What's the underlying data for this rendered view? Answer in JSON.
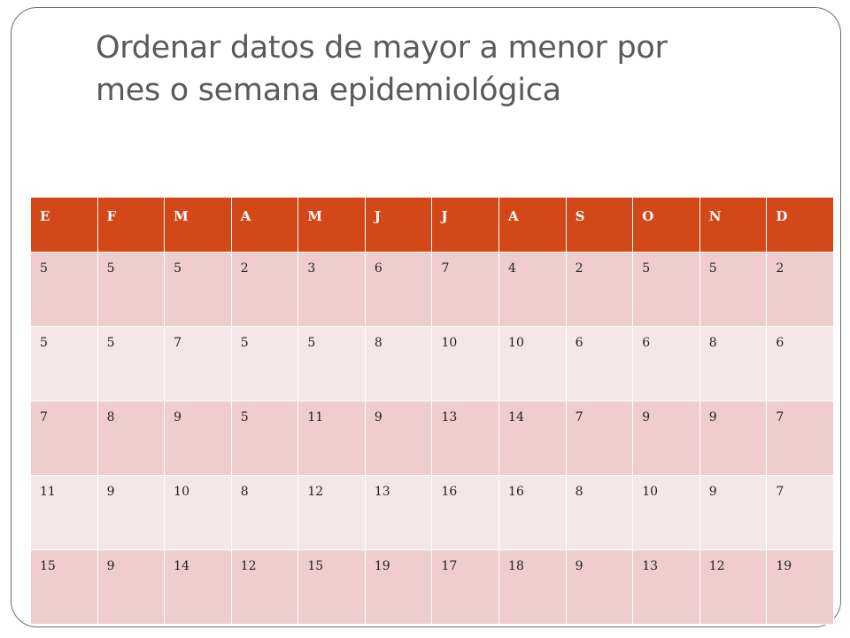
{
  "slide": {
    "title_line1": "Ordenar datos de mayor a menor por",
    "title_line2": "mes o semana epidemiológica"
  },
  "table": {
    "headers": [
      "E",
      "F",
      "M",
      "A",
      "M",
      "J",
      "J",
      "A",
      "S",
      "O",
      "N",
      "D"
    ],
    "rows": [
      [
        "5",
        "5",
        "5",
        "2",
        "3",
        "6",
        "7",
        "4",
        "2",
        "5",
        "5",
        "2"
      ],
      [
        "5",
        "5",
        "7",
        "5",
        "5",
        "8",
        "10",
        "10",
        "6",
        "6",
        "8",
        "6"
      ],
      [
        "7",
        "8",
        "9",
        "5",
        "11",
        "9",
        "13",
        "14",
        "7",
        "9",
        "9",
        "7"
      ],
      [
        "11",
        "9",
        "10",
        "8",
        "12",
        "13",
        "16",
        "16",
        "8",
        "10",
        "9",
        "7"
      ],
      [
        "15",
        "9",
        "14",
        "12",
        "15",
        "19",
        "17",
        "18",
        "9",
        "13",
        "12",
        "19"
      ]
    ]
  },
  "colors": {
    "header_bg": "#d24818",
    "row_odd_bg": "#efcdcd",
    "row_even_bg": "#f6e7e7",
    "title_text": "#5a5a5a"
  }
}
